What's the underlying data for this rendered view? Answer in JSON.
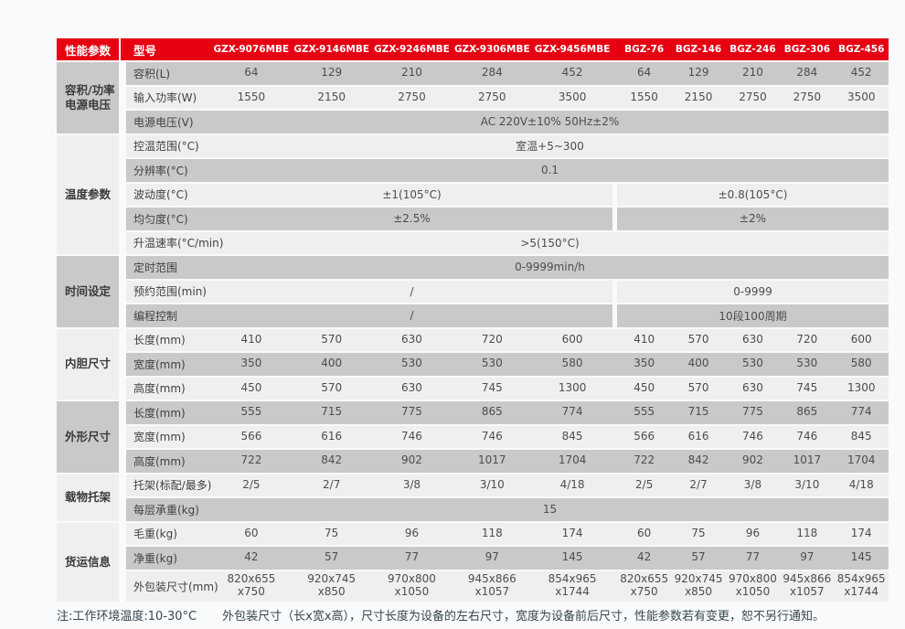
{
  "page": {
    "note_prefix": "注:工作环境温度:10-30°C",
    "note_body": "外包装尺寸（长x宽x高），尺寸长度为设备的左右尺寸，宽度为设备前后尺寸，性能参数若有变更，恕不另行通知。"
  },
  "colors": {
    "header_red": "#e60012",
    "stripe_dark": "#c9c9c9",
    "stripe_light": "#efefef",
    "page_bg": "#f8fafb"
  },
  "table": {
    "header": {
      "param_col": "性能参数",
      "model_col": "型号",
      "models": [
        "GZX-9076MBE",
        "GZX-9146MBE",
        "GZX-9246MBE",
        "GZX-9306MBE",
        "GZX-9456MBE",
        "BGZ-76",
        "BGZ-146",
        "BGZ-246",
        "BGZ-306",
        "BGZ-456"
      ]
    },
    "groups": [
      {
        "label": "容积/功率\n电源电压",
        "shade": "dark",
        "row_count": 3
      },
      {
        "label": "温度参数",
        "shade": "light",
        "row_count": 5
      },
      {
        "label": "时间设定",
        "shade": "dark",
        "row_count": 3
      },
      {
        "label": "内胆尺寸",
        "shade": "light",
        "row_count": 3
      },
      {
        "label": "外形尺寸",
        "shade": "dark",
        "row_count": 3
      },
      {
        "label": "载物托架",
        "shade": "light",
        "row_count": 2
      },
      {
        "label": "货运信息",
        "shade": "light",
        "row_count": 3
      }
    ],
    "rows": [
      {
        "label": "容积(L)",
        "type": "cells",
        "values": [
          "64",
          "129",
          "210",
          "284",
          "452",
          "64",
          "129",
          "210",
          "284",
          "452"
        ]
      },
      {
        "label": "输入功率(W)",
        "type": "cells",
        "values": [
          "1550",
          "2150",
          "2750",
          "2750",
          "3500",
          "1550",
          "2150",
          "2750",
          "2750",
          "3500"
        ]
      },
      {
        "label": "电源电压(V)",
        "type": "full",
        "value": "AC 220V±10% 50Hz±2%"
      },
      {
        "label": "控温范围(°C)",
        "type": "full",
        "value": "室温+5~300"
      },
      {
        "label": "分辨率(°C)",
        "type": "full",
        "value": "0.1"
      },
      {
        "label": "波动度(°C)",
        "type": "split",
        "left": "±1(105°C)",
        "right": "±0.8(105°C)"
      },
      {
        "label": "均匀度(°C)",
        "type": "split",
        "left": "±2.5%",
        "right": "±2%"
      },
      {
        "label": "升温速率(°C/min)",
        "type": "full",
        "value": ">5(150°C)"
      },
      {
        "label": "定时范围",
        "type": "full",
        "value": "0-9999min/h"
      },
      {
        "label": "预约范围(min)",
        "type": "split",
        "left": "/",
        "right": "0-9999"
      },
      {
        "label": "编程控制",
        "type": "split",
        "left": "/",
        "right": "10段100周期"
      },
      {
        "label": "长度(mm)",
        "type": "cells",
        "values": [
          "410",
          "570",
          "630",
          "720",
          "600",
          "410",
          "570",
          "630",
          "720",
          "600"
        ]
      },
      {
        "label": "宽度(mm)",
        "type": "cells",
        "values": [
          "350",
          "400",
          "530",
          "530",
          "580",
          "350",
          "400",
          "530",
          "530",
          "580"
        ]
      },
      {
        "label": "高度(mm)",
        "type": "cells",
        "values": [
          "450",
          "570",
          "630",
          "745",
          "1300",
          "450",
          "570",
          "630",
          "745",
          "1300"
        ]
      },
      {
        "label": "长度(mm)",
        "type": "cells",
        "values": [
          "555",
          "715",
          "775",
          "865",
          "774",
          "555",
          "715",
          "775",
          "865",
          "774"
        ]
      },
      {
        "label": "宽度(mm)",
        "type": "cells",
        "values": [
          "566",
          "616",
          "746",
          "746",
          "845",
          "566",
          "616",
          "746",
          "746",
          "845"
        ]
      },
      {
        "label": "高度(mm)",
        "type": "cells",
        "values": [
          "722",
          "842",
          "902",
          "1017",
          "1704",
          "722",
          "842",
          "902",
          "1017",
          "1704"
        ]
      },
      {
        "label": "托架(标配/最多)",
        "type": "cells",
        "values": [
          "2/5",
          "2/7",
          "3/8",
          "3/10",
          "4/18",
          "2/5",
          "2/7",
          "3/8",
          "3/10",
          "4/18"
        ]
      },
      {
        "label": "每层承重(kg)",
        "type": "full",
        "value": "15"
      },
      {
        "label": "毛重(kg)",
        "type": "cells",
        "values": [
          "60",
          "75",
          "96",
          "118",
          "174",
          "60",
          "75",
          "96",
          "118",
          "174"
        ]
      },
      {
        "label": "净重(kg)",
        "type": "cells",
        "values": [
          "42",
          "57",
          "77",
          "97",
          "145",
          "42",
          "57",
          "77",
          "97",
          "145"
        ]
      },
      {
        "label": "外包装尺寸(mm)",
        "type": "cells",
        "tall": true,
        "values": [
          "820x655\nx750",
          "920x745\nx850",
          "970x800\nx1050",
          "945x866\nx1057",
          "854x965\nx1744",
          "820x655\nx750",
          "920x745\nx850",
          "970x800\nx1050",
          "945x866\nx1057",
          "854x965\nx1744"
        ]
      }
    ]
  }
}
